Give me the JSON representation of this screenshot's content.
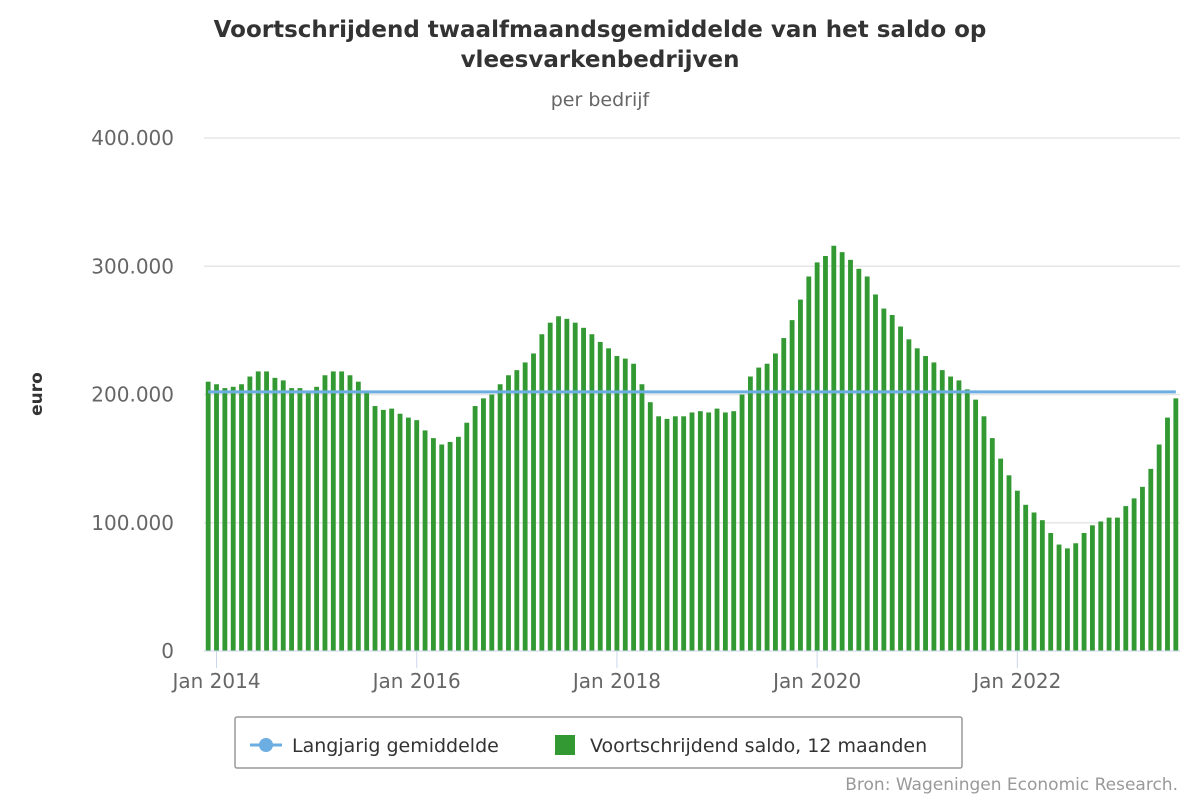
{
  "chart_data": {
    "type": "bar",
    "title_line1": "Voortschrijdend twaalfmaandsgemiddelde van het saldo op",
    "title_line2": "vleesvarkenbedrijven",
    "subtitle": "per bedrijf",
    "ylabel": "euro",
    "ylim": [
      0,
      400000
    ],
    "yticks": [
      0,
      100000,
      200000,
      300000,
      400000
    ],
    "ytick_labels": [
      "0",
      "100.000",
      "200.000",
      "300.000",
      "400.000"
    ],
    "xticks": [
      "Jan 2014",
      "Jan 2016",
      "Jan 2018",
      "Jan 2020",
      "Jan 2022"
    ],
    "x_start": "2013-12",
    "grid": true,
    "legend_position": "bottom-center",
    "series": [
      {
        "name": "Langjarig gemiddelde",
        "kind": "line",
        "color": "#6cade2",
        "value": 202000
      },
      {
        "name": "Voortschrijdend saldo, 12 maanden",
        "kind": "bar",
        "color": "#339933",
        "values": [
          210000,
          208000,
          205000,
          206000,
          208000,
          214000,
          218000,
          218000,
          213000,
          211000,
          205000,
          205000,
          203000,
          206000,
          215000,
          218000,
          218000,
          215000,
          210000,
          202000,
          191000,
          188000,
          189000,
          185000,
          182000,
          180000,
          172000,
          166000,
          161000,
          163000,
          167000,
          178000,
          191000,
          197000,
          200000,
          208000,
          215000,
          219000,
          225000,
          232000,
          247000,
          256000,
          261000,
          259000,
          256000,
          252000,
          247000,
          241000,
          236000,
          230000,
          228000,
          224000,
          208000,
          194000,
          183000,
          181000,
          183000,
          183000,
          186000,
          187000,
          186000,
          189000,
          186000,
          187000,
          200000,
          214000,
          221000,
          224000,
          232000,
          244000,
          258000,
          274000,
          292000,
          303000,
          308000,
          316000,
          311000,
          305000,
          298000,
          292000,
          278000,
          267000,
          262000,
          253000,
          243000,
          236000,
          230000,
          225000,
          219000,
          214000,
          211000,
          204000,
          196000,
          183000,
          166000,
          150000,
          137000,
          125000,
          114000,
          108000,
          102000,
          92000,
          83000,
          80000,
          84000,
          92000,
          98000,
          101000,
          104000,
          104000,
          113000,
          119000,
          128000,
          142000,
          161000,
          182000,
          197000
        ]
      }
    ]
  },
  "credit": "Bron: Wageningen Economic Research."
}
